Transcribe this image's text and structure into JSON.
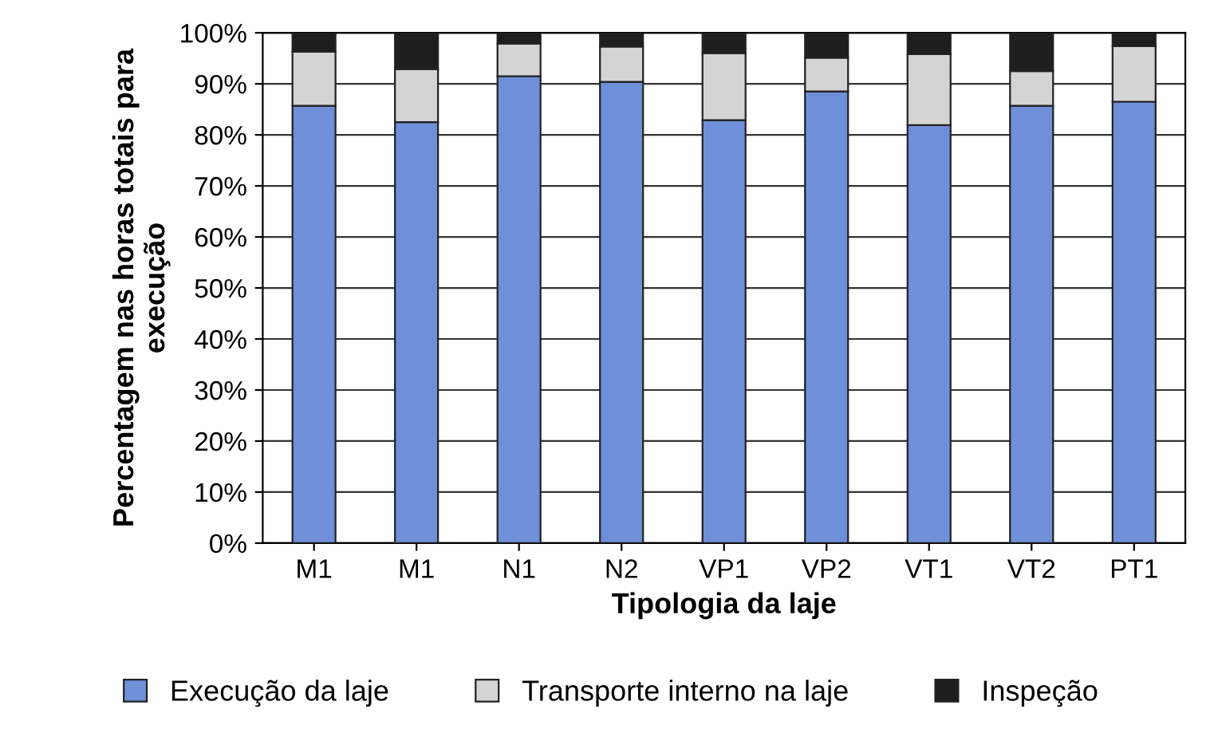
{
  "chart_data": {
    "type": "bar",
    "stacked": true,
    "xlabel": "Tipologia da laje",
    "ylabel": "Percentagem nas horas totais para execução",
    "categories": [
      "M1",
      "M1",
      "N1",
      "N2",
      "VP1",
      "VP2",
      "VT1",
      "VT2",
      "PT1"
    ],
    "series": [
      {
        "name": "Execução da laje",
        "color": "#6f8fd8",
        "values": [
          85.7,
          82.5,
          91.5,
          90.4,
          82.9,
          88.5,
          81.9,
          85.7,
          86.5
        ]
      },
      {
        "name": "Transporte interno na laje",
        "color": "#d4d4d4",
        "values": [
          10.6,
          10.4,
          6.4,
          6.9,
          13.1,
          6.6,
          13.9,
          6.8,
          10.9
        ]
      },
      {
        "name": "Inspeção",
        "color": "#1e1e1e",
        "values": [
          3.7,
          7.1,
          2.1,
          2.7,
          4.0,
          4.9,
          4.2,
          7.5,
          2.6
        ]
      }
    ],
    "ylim": [
      0,
      100
    ],
    "yticks": [
      {
        "value": 0,
        "label": "0%"
      },
      {
        "value": 10,
        "label": "10%"
      },
      {
        "value": 20,
        "label": "20%"
      },
      {
        "value": 30,
        "label": "30%"
      },
      {
        "value": 40,
        "label": "40%"
      },
      {
        "value": 50,
        "label": "50%"
      },
      {
        "value": 60,
        "label": "60%"
      },
      {
        "value": 70,
        "label": "70%"
      },
      {
        "value": 80,
        "label": "80%"
      },
      {
        "value": 90,
        "label": "90%"
      },
      {
        "value": 100,
        "label": "100%"
      }
    ],
    "grid": "y",
    "legend": "bottom"
  }
}
